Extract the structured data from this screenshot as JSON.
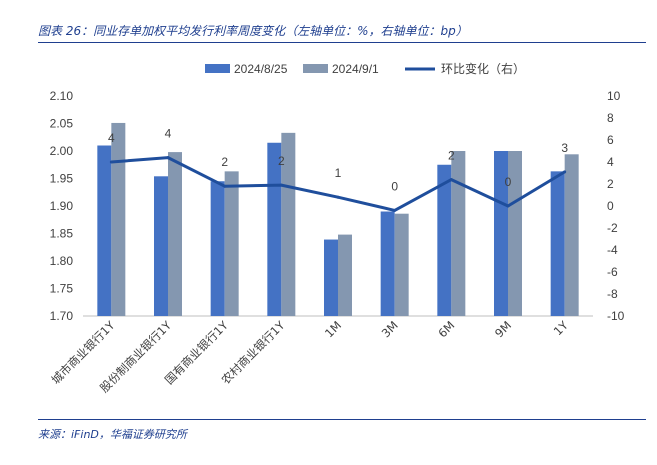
{
  "header": {
    "title": "图表 26：同业存单加权平均发行利率周度变化（左轴单位：%，右轴单位：bp）"
  },
  "footer": {
    "source": "来源：iFinD，华福证券研究所"
  },
  "colors": {
    "series1": "#4472c4",
    "series2": "#8497b0",
    "line": "#1f4e9c",
    "accent": "#1f3f8f"
  },
  "chart_data": {
    "type": "bar",
    "categories": [
      "城市商业银行1Y",
      "股份制商业银行1Y",
      "国有商业银行1Y",
      "农村商业银行1Y",
      "1M",
      "3M",
      "6M",
      "9M",
      "1Y"
    ],
    "series": [
      {
        "name": "2024/8/25",
        "type": "bar",
        "axis": "left",
        "values": [
          2.01,
          1.954,
          1.945,
          2.015,
          1.839,
          1.89,
          1.975,
          2.0,
          1.963
        ]
      },
      {
        "name": "2024/9/1",
        "type": "bar",
        "axis": "left",
        "values": [
          2.051,
          1.998,
          1.963,
          2.033,
          1.848,
          1.886,
          2.0,
          2.0,
          1.994
        ]
      },
      {
        "name": "环比变化（右）",
        "type": "line",
        "axis": "right",
        "values": [
          4,
          4.4,
          1.8,
          1.9,
          0.8,
          -0.4,
          2.4,
          0,
          3.1
        ],
        "labels": [
          "4",
          "4",
          "2",
          "2",
          "1",
          "0",
          "2",
          "0",
          "3"
        ]
      }
    ],
    "yleft": {
      "lim": [
        1.7,
        2.1
      ],
      "ticks": [
        "1.70",
        "1.75",
        "1.80",
        "1.85",
        "1.90",
        "1.95",
        "2.00",
        "2.05",
        "2.10"
      ]
    },
    "yright": {
      "lim": [
        -10,
        10
      ],
      "ticks": [
        "-10",
        "-8",
        "-6",
        "-4",
        "-2",
        "0",
        "2",
        "4",
        "6",
        "8",
        "10"
      ]
    },
    "grid": false,
    "legend": "top"
  }
}
